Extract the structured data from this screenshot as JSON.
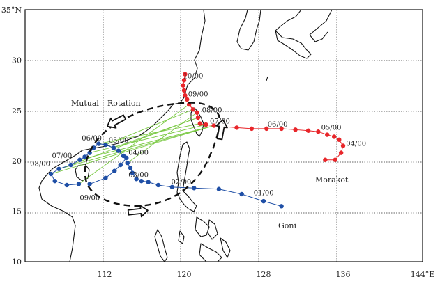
{
  "map": {
    "axes": {
      "lat_ticks": [
        {
          "value": 10,
          "label": "10"
        },
        {
          "value": 15,
          "label": "15"
        },
        {
          "value": 20,
          "label": "20"
        },
        {
          "value": 25,
          "label": "25"
        },
        {
          "value": 30,
          "label": "30"
        },
        {
          "value": 35,
          "label": "35°N"
        }
      ],
      "lon_ticks": [
        {
          "value": 112,
          "label": "112"
        },
        {
          "value": 120,
          "label": "120"
        },
        {
          "value": 128,
          "label": "128"
        },
        {
          "value": 136,
          "label": "136"
        },
        {
          "value": 144,
          "label": "144°E"
        }
      ],
      "lon_range": [
        104,
        144
      ],
      "lat_range": [
        10,
        35
      ],
      "grid": "dotted"
    },
    "labels": {
      "mutual": "Mutual",
      "rotation": "Rotation",
      "morakot": "Morakot",
      "goni": "Goni"
    },
    "colors": {
      "morakot": "#e8262a",
      "goni": "#1f4fa6",
      "link": "#7ac943",
      "coast": "#111111",
      "rotation": "#111111"
    },
    "tracks": {
      "morakot": {
        "name": "Morakot",
        "points": [
          [
            134.2,
            20.1
          ],
          [
            135.2,
            20.1
          ],
          [
            135.8,
            20.8
          ],
          [
            136.0,
            21.5
          ],
          [
            135.6,
            22.1
          ],
          [
            135.1,
            22.4
          ],
          [
            134.4,
            22.6
          ],
          [
            133.5,
            22.9
          ],
          [
            132.5,
            23.0
          ],
          [
            131.2,
            23.1
          ],
          [
            129.8,
            23.2
          ],
          [
            128.3,
            23.2
          ],
          [
            126.8,
            23.2
          ],
          [
            125.3,
            23.3
          ],
          [
            124.0,
            23.4
          ],
          [
            123.0,
            23.5
          ],
          [
            122.2,
            23.6
          ],
          [
            121.6,
            23.7
          ],
          [
            121.4,
            24.3
          ],
          [
            121.3,
            24.8
          ],
          [
            120.9,
            25.1
          ],
          [
            120.5,
            25.6
          ],
          [
            120.3,
            26.1
          ],
          [
            120.1,
            26.5
          ],
          [
            120.0,
            27.0
          ],
          [
            119.9,
            27.5
          ],
          [
            120.0,
            28.0
          ],
          [
            120.1,
            28.6
          ]
        ],
        "time_labels": [
          {
            "text": "04/00",
            "lon": 136.3,
            "lat": 21.5
          },
          {
            "text": "05/00",
            "lon": 133.8,
            "lat": 23.1
          },
          {
            "text": "06/00",
            "lon": 128.4,
            "lat": 23.4
          },
          {
            "text": "07/00",
            "lon": 122.6,
            "lat": 23.7
          },
          {
            "text": "08/00",
            "lon": 121.8,
            "lat": 24.8
          },
          {
            "text": "09/00",
            "lon": 120.4,
            "lat": 26.4
          },
          {
            "text": "10/00",
            "lon": 119.9,
            "lat": 28.2
          }
        ]
      },
      "goni": {
        "name": "Goni",
        "points": [
          [
            129.8,
            15.5
          ],
          [
            128.0,
            16.0
          ],
          [
            125.8,
            16.7
          ],
          [
            123.5,
            17.2
          ],
          [
            121.0,
            17.3
          ],
          [
            118.8,
            17.4
          ],
          [
            117.4,
            17.6
          ],
          [
            116.4,
            17.9
          ],
          [
            115.7,
            18.0
          ],
          [
            115.2,
            18.2
          ],
          [
            114.8,
            18.8
          ],
          [
            114.6,
            19.3
          ],
          [
            114.3,
            19.8
          ],
          [
            113.9,
            20.5
          ],
          [
            113.4,
            21.0
          ],
          [
            112.9,
            21.3
          ],
          [
            112.1,
            21.6
          ],
          [
            111.4,
            21.7
          ],
          [
            110.9,
            21.3
          ],
          [
            110.5,
            20.8
          ],
          [
            110.0,
            20.4
          ],
          [
            109.5,
            20.1
          ],
          [
            108.6,
            19.6
          ],
          [
            107.4,
            19.2
          ],
          [
            106.6,
            18.7
          ],
          [
            107.0,
            18.0
          ],
          [
            108.2,
            17.6
          ],
          [
            109.4,
            17.7
          ],
          [
            110.5,
            17.7
          ],
          [
            112.1,
            18.3
          ],
          [
            113.0,
            19.0
          ],
          [
            113.6,
            19.6
          ],
          [
            114.2,
            20.3
          ]
        ],
        "time_labels": [
          {
            "text": "01/00",
            "lon": 127.0,
            "lat": 16.6
          },
          {
            "text": "02/00",
            "lon": 118.7,
            "lat": 17.7
          },
          {
            "text": "03/00",
            "lon": 114.4,
            "lat": 18.4
          },
          {
            "text": "04/00",
            "lon": 114.4,
            "lat": 20.6
          },
          {
            "text": "05/00",
            "lon": 112.4,
            "lat": 21.8
          },
          {
            "text": "06/00",
            "lon": 109.7,
            "lat": 22.0
          },
          {
            "text": "07/00",
            "lon": 106.7,
            "lat": 20.3
          },
          {
            "text": "08/00",
            "lon": 104.5,
            "lat": 19.5
          },
          {
            "text": "09/00",
            "lon": 109.5,
            "lat": 16.1
          }
        ]
      }
    },
    "links": [
      [
        [
          123.0,
          23.5
        ],
        [
          106.6,
          18.7
        ]
      ],
      [
        [
          123.0,
          23.5
        ],
        [
          107.4,
          19.2
        ]
      ],
      [
        [
          123.0,
          23.5
        ],
        [
          109.5,
          20.1
        ]
      ],
      [
        [
          122.2,
          23.6
        ],
        [
          110.5,
          20.8
        ]
      ],
      [
        [
          121.6,
          23.7
        ],
        [
          111.4,
          21.7
        ]
      ],
      [
        [
          121.4,
          24.3
        ],
        [
          112.9,
          21.3
        ]
      ],
      [
        [
          121.3,
          24.8
        ],
        [
          114.3,
          19.8
        ]
      ],
      [
        [
          120.9,
          25.1
        ],
        [
          112.1,
          21.6
        ]
      ],
      [
        [
          120.5,
          25.6
        ],
        [
          109.4,
          17.7
        ]
      ],
      [
        [
          121.4,
          24.3
        ],
        [
          108.6,
          19.6
        ]
      ]
    ]
  }
}
